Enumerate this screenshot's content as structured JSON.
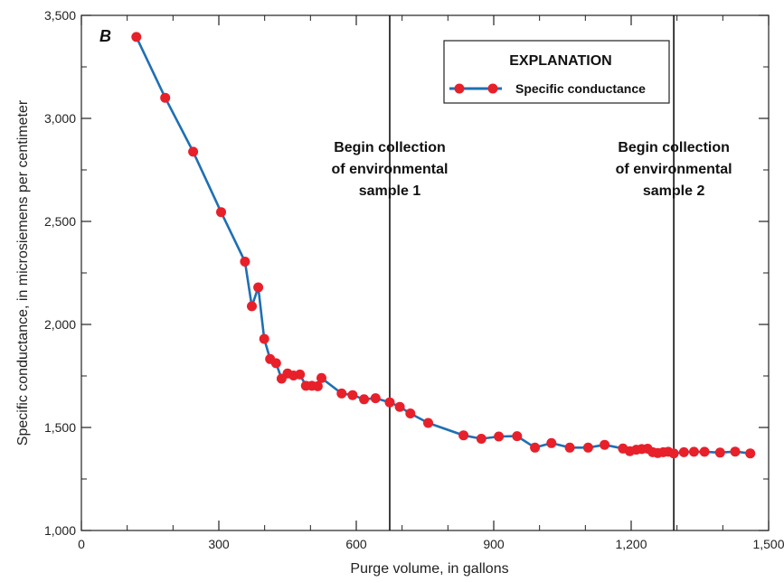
{
  "chart_data": {
    "type": "line",
    "panel_label": "B",
    "xlabel": "Purge volume, in gallons",
    "ylabel": "Specific conductance, in microsiemens per centimeter",
    "xlim": [
      0,
      1500
    ],
    "ylim": [
      1000,
      3500
    ],
    "x_ticks": [
      0,
      300,
      600,
      900,
      1200,
      1500
    ],
    "x_tick_labels": [
      "0",
      "300",
      "600",
      "900",
      "1,200",
      "1,500"
    ],
    "y_ticks": [
      1000,
      1500,
      2000,
      2500,
      3000,
      3500
    ],
    "y_tick_labels": [
      "1,000",
      "1,500",
      "2,000",
      "2,500",
      "3,000",
      "3,500"
    ],
    "grid": false,
    "legend": {
      "title": "EXPLANATION",
      "position": "top-right"
    },
    "line_color": "#1f6fb4",
    "marker_color": "#e8202a",
    "series": [
      {
        "name": "Specific conductance",
        "points": [
          [
            120,
            3395
          ],
          [
            183,
            3100
          ],
          [
            244,
            2838
          ],
          [
            305,
            2545
          ],
          [
            357,
            2305
          ],
          [
            372,
            2088
          ],
          [
            386,
            2180
          ],
          [
            399,
            1930
          ],
          [
            412,
            1832
          ],
          [
            425,
            1812
          ],
          [
            437,
            1737
          ],
          [
            450,
            1762
          ],
          [
            463,
            1752
          ],
          [
            477,
            1757
          ],
          [
            490,
            1702
          ],
          [
            503,
            1702
          ],
          [
            516,
            1700
          ],
          [
            524,
            1740
          ],
          [
            568,
            1665
          ],
          [
            592,
            1657
          ],
          [
            617,
            1637
          ],
          [
            642,
            1642
          ],
          [
            673,
            1622
          ],
          [
            695,
            1600
          ],
          [
            718,
            1568
          ],
          [
            757,
            1522
          ],
          [
            834,
            1462
          ],
          [
            873,
            1445
          ],
          [
            911,
            1456
          ],
          [
            951,
            1458
          ],
          [
            990,
            1402
          ],
          [
            1026,
            1424
          ],
          [
            1066,
            1402
          ],
          [
            1106,
            1402
          ],
          [
            1142,
            1416
          ],
          [
            1182,
            1398
          ],
          [
            1197,
            1385
          ],
          [
            1211,
            1392
          ],
          [
            1223,
            1395
          ],
          [
            1236,
            1397
          ],
          [
            1247,
            1380
          ],
          [
            1258,
            1376
          ],
          [
            1270,
            1380
          ],
          [
            1281,
            1382
          ],
          [
            1293,
            1374
          ],
          [
            1315,
            1380
          ],
          [
            1337,
            1382
          ],
          [
            1360,
            1382
          ],
          [
            1394,
            1378
          ],
          [
            1427,
            1383
          ],
          [
            1460,
            1374
          ]
        ]
      }
    ],
    "annotations": [
      {
        "x": 673,
        "lines": [
          "Begin collection",
          "of environmental",
          "sample 1"
        ]
      },
      {
        "x": 1293,
        "lines": [
          "Begin collection",
          "of environmental",
          "sample 2"
        ]
      }
    ]
  }
}
